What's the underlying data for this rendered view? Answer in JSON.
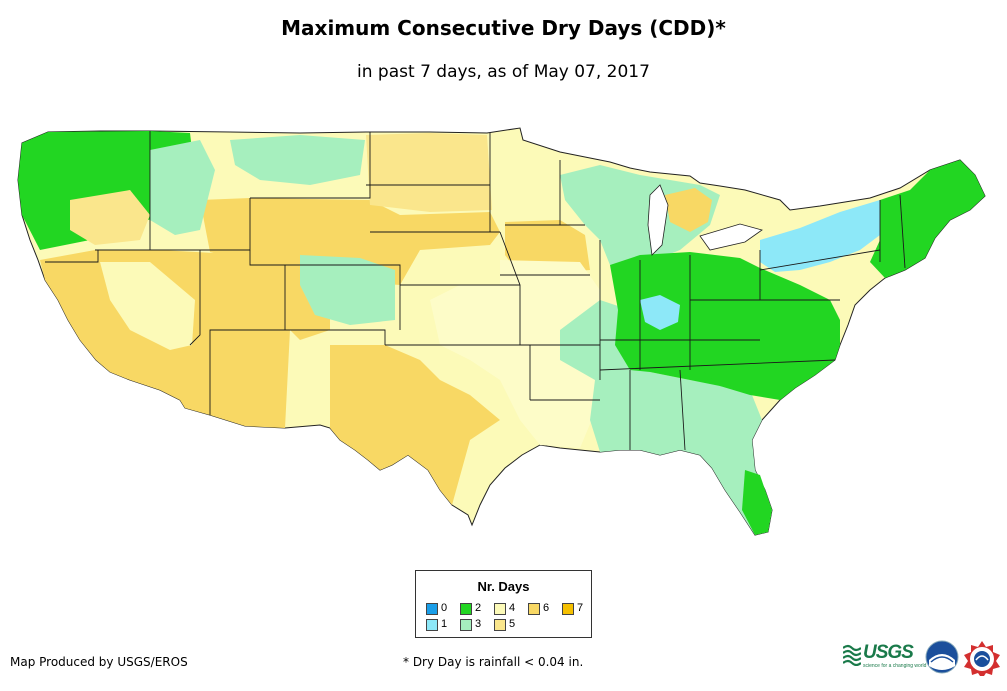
{
  "title": "Maximum Consecutive Dry Days (CDD)*",
  "subtitle": "in past 7 days, as of May 07, 2017",
  "legend": {
    "title": "Nr. Days",
    "items": [
      {
        "label": "0",
        "color": "#1a9ee8"
      },
      {
        "label": "1",
        "color": "#8de8f8"
      },
      {
        "label": "2",
        "color": "#22d622"
      },
      {
        "label": "3",
        "color": "#a6efbe"
      },
      {
        "label": "4",
        "color": "#fcfab8"
      },
      {
        "label": "5",
        "color": "#fae68c"
      },
      {
        "label": "6",
        "color": "#f8d864"
      },
      {
        "label": "7",
        "color": "#f5c000"
      }
    ]
  },
  "credit": "Map Produced by USGS/EROS",
  "footnote": "* Dry Day is rainfall < 0.04 in.",
  "logos": {
    "usgs": "USGS",
    "usgs_tagline": "science for a changing world",
    "noaa": "noaa",
    "nws": "NWS"
  }
}
